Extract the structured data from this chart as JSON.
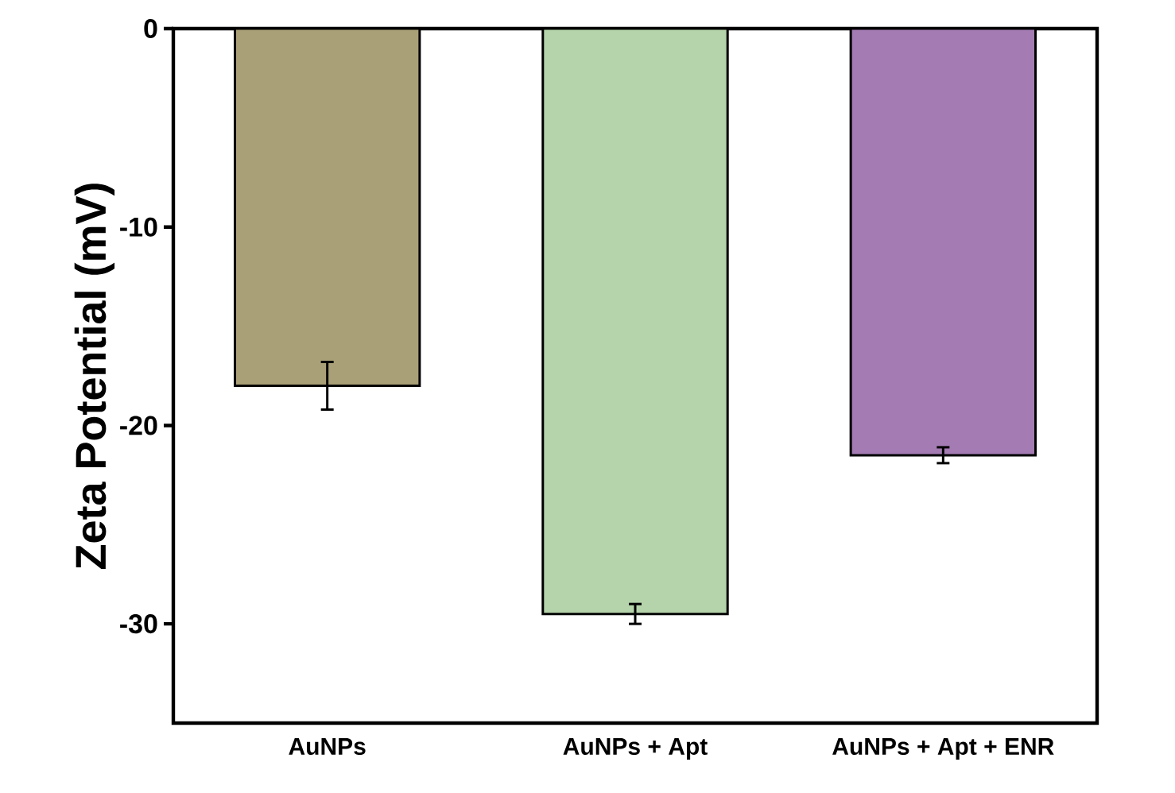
{
  "chart_data": {
    "type": "bar",
    "ylabel": "Zeta Potential (mV)",
    "categories": [
      "AuNPs",
      "AuNPs + Apt",
      "AuNPs + Apt + ENR"
    ],
    "values": [
      -18,
      -29.5,
      -21.5
    ],
    "errors": [
      1.2,
      0.5,
      0.4
    ],
    "colors": [
      "#a9a077",
      "#b5d4ab",
      "#a47bb3"
    ],
    "ylim": [
      -35,
      0
    ],
    "yticks": [
      0,
      -10,
      -20,
      -30
    ]
  }
}
